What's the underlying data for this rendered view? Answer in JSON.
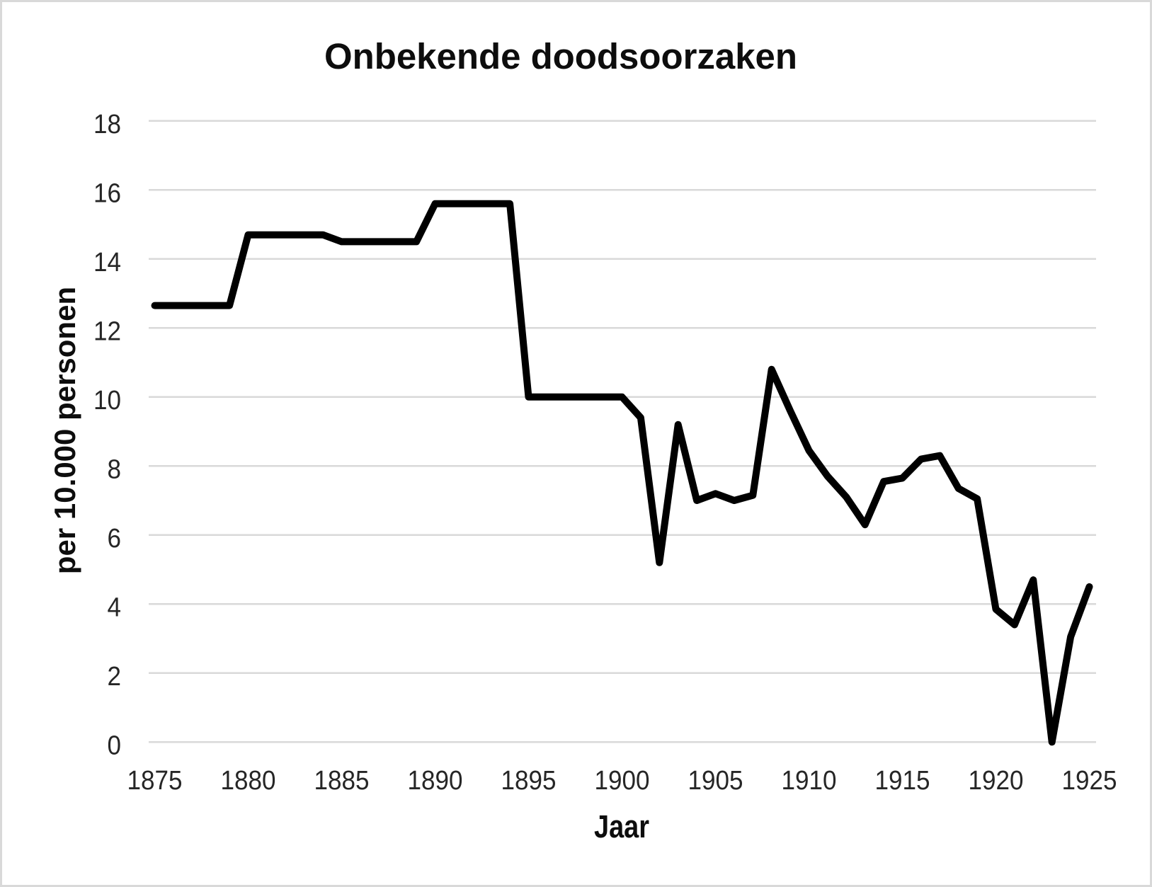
{
  "frame": {
    "background": "#ffffff",
    "border_color": "#d9d9d9"
  },
  "chart_data": {
    "type": "line",
    "title": "Onbekende doodsoorzaken",
    "xlabel": "Jaar",
    "ylabel": "per 10.000 personen",
    "x": [
      1875,
      1876,
      1877,
      1878,
      1879,
      1880,
      1881,
      1882,
      1883,
      1884,
      1885,
      1886,
      1887,
      1888,
      1889,
      1890,
      1891,
      1892,
      1893,
      1894,
      1895,
      1896,
      1897,
      1898,
      1899,
      1900,
      1901,
      1902,
      1903,
      1904,
      1905,
      1906,
      1907,
      1908,
      1909,
      1910,
      1911,
      1912,
      1913,
      1914,
      1915,
      1916,
      1917,
      1918,
      1919,
      1920,
      1921,
      1922,
      1923,
      1924,
      1925
    ],
    "values": [
      12.65,
      12.65,
      12.65,
      12.65,
      12.65,
      14.7,
      14.7,
      14.7,
      14.7,
      14.7,
      14.5,
      14.5,
      14.5,
      14.5,
      14.5,
      15.6,
      15.6,
      15.6,
      15.6,
      15.6,
      10.0,
      10.0,
      10.0,
      10.0,
      10.0,
      10.0,
      9.4,
      5.2,
      9.2,
      7.0,
      7.2,
      7.0,
      7.15,
      10.8,
      9.6,
      8.45,
      7.7,
      7.1,
      6.3,
      7.55,
      7.65,
      8.2,
      8.3,
      7.35,
      7.05,
      3.85,
      3.4,
      4.7,
      0.0,
      3.05,
      4.5
    ],
    "xticks": [
      1875,
      1880,
      1885,
      1890,
      1895,
      1900,
      1905,
      1910,
      1915,
      1920,
      1925
    ],
    "yticks": [
      0,
      2,
      4,
      6,
      8,
      10,
      12,
      14,
      16,
      18
    ],
    "xlim": [
      1875,
      1925
    ],
    "ylim": [
      0,
      18
    ],
    "grid": "horizontal",
    "legend": "none",
    "styles": {
      "line_color": "#000000",
      "line_width": 10,
      "gridline_color": "#d9d9d9",
      "gridline_width": 2.5,
      "tick_text_color": "#262626",
      "title_color": "#0d0d0d"
    }
  }
}
